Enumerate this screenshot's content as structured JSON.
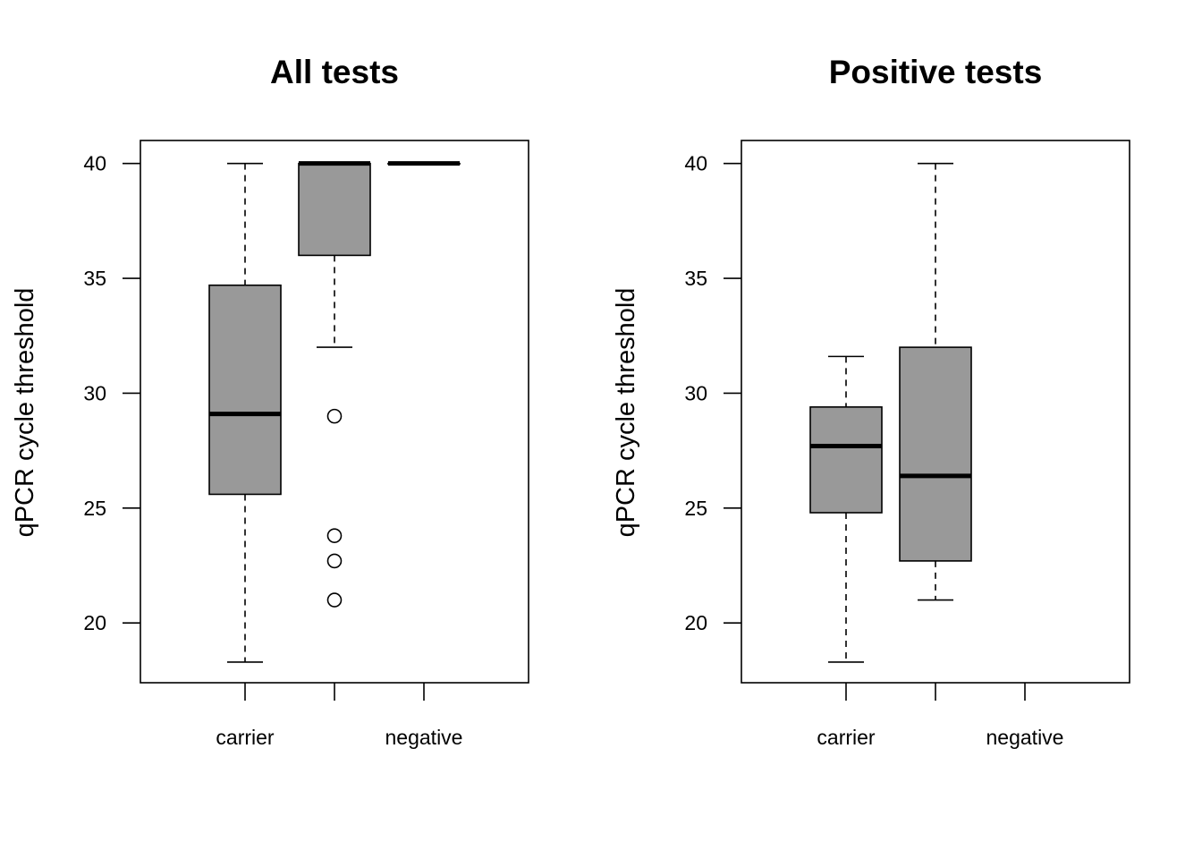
{
  "chart_data": [
    {
      "type": "box",
      "title": "All tests",
      "ylabel": "qPCR cycle threshold",
      "ylim": [
        17.4,
        41.0
      ],
      "yticks": [
        20,
        25,
        30,
        35,
        40
      ],
      "categories": [
        "carrier",
        "",
        "negative"
      ],
      "boxes": [
        {
          "whisker_low": 18.3,
          "q1": 25.6,
          "median": 29.1,
          "q3": 34.7,
          "whisker_high": 40.0,
          "outliers": []
        },
        {
          "whisker_low": 32.0,
          "q1": 36.0,
          "median": 40.0,
          "q3": 40.0,
          "whisker_high": 40.0,
          "outliers": [
            29.0,
            23.8,
            22.7,
            21.0
          ]
        },
        {
          "whisker_low": 40.0,
          "q1": 40.0,
          "median": 40.0,
          "q3": 40.0,
          "whisker_high": 40.0,
          "outliers": []
        }
      ],
      "box_color": "#999999"
    },
    {
      "type": "box",
      "title": "Positive tests",
      "ylabel": "qPCR cycle threshold",
      "ylim": [
        17.4,
        41.0
      ],
      "yticks": [
        20,
        25,
        30,
        35,
        40
      ],
      "categories": [
        "carrier",
        "",
        "negative"
      ],
      "boxes": [
        {
          "whisker_low": 18.3,
          "q1": 24.8,
          "median": 27.7,
          "q3": 29.4,
          "whisker_high": 31.6,
          "outliers": []
        },
        {
          "whisker_low": 21.0,
          "q1": 22.7,
          "median": 26.4,
          "q3": 32.0,
          "whisker_high": 40.0,
          "outliers": []
        },
        null
      ],
      "box_color": "#999999"
    }
  ]
}
